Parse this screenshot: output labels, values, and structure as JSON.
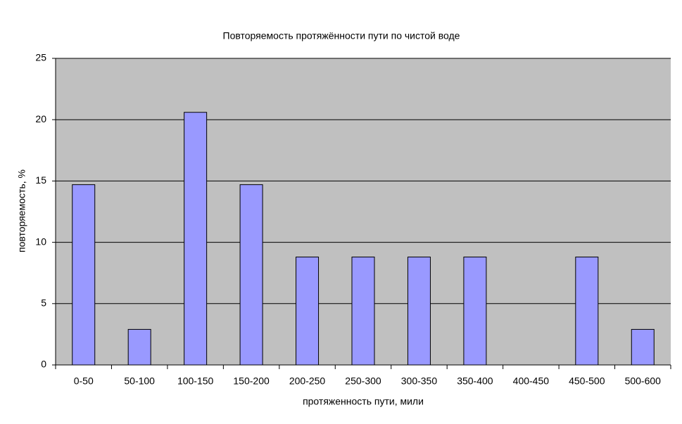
{
  "chart_data": {
    "type": "bar",
    "title": "Повторяемость протяжённости пути по чистой воде",
    "x_label": "протяженность пути, мили",
    "y_label": "повторяемость, %",
    "categories": [
      "0-50",
      "50-100",
      "100-150",
      "150-200",
      "200-250",
      "250-300",
      "300-350",
      "350-400",
      "400-450",
      "450-500",
      "500-600"
    ],
    "values": [
      14.7,
      2.9,
      20.6,
      14.7,
      8.8,
      8.8,
      8.8,
      8.8,
      0,
      8.8,
      2.9
    ],
    "color": "#9999ff",
    "ylim": [
      0,
      25
    ],
    "yticks": [
      0,
      5,
      10,
      15,
      20,
      25
    ],
    "grid": true
  }
}
